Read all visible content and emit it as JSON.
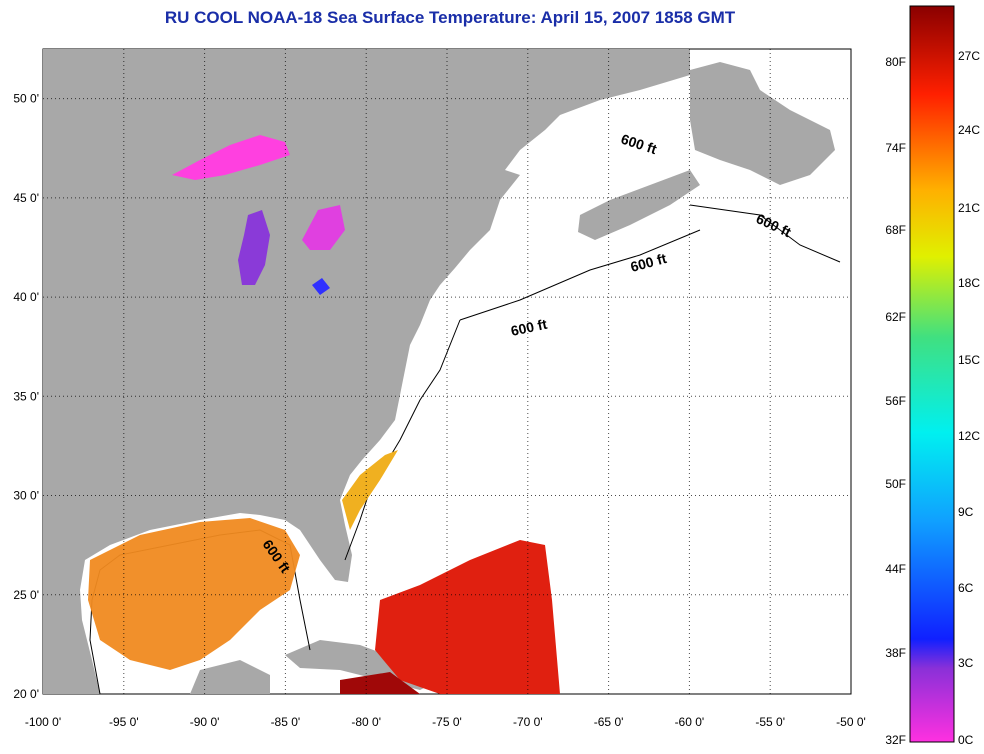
{
  "title": "RU COOL  NOAA-18  Sea Surface Temperature:  April 15, 2007 1858 GMT",
  "map": {
    "lon_range": [
      -100,
      -50
    ],
    "lat_range": [
      20,
      52.5
    ],
    "x_ticks": [
      "-100 0'",
      "-95 0'",
      "-90 0'",
      "-85 0'",
      "-80 0'",
      "-75 0'",
      "-70 0'",
      "-65 0'",
      "-60 0'",
      "-55 0'",
      "-50 0'"
    ],
    "y_ticks": [
      "20 0'",
      "25 0'",
      "30 0'",
      "35 0'",
      "40 0'",
      "45 0'",
      "50 0'"
    ],
    "contour_labels": [
      "600 ft",
      "600 ft",
      "600 ft",
      "600 ft",
      "600 ft"
    ],
    "land_color": "#a8a8a8",
    "water_color": "#ffffff"
  },
  "colorbar": {
    "fahrenheit_labels": [
      "80F",
      "74F",
      "68F",
      "62F",
      "56F",
      "50F",
      "44F",
      "38F",
      "32F"
    ],
    "celsius_labels": [
      "27C",
      "24C",
      "21C",
      "18C",
      "15C",
      "12C",
      "9C",
      "6C",
      "3C",
      "0C"
    ]
  }
}
